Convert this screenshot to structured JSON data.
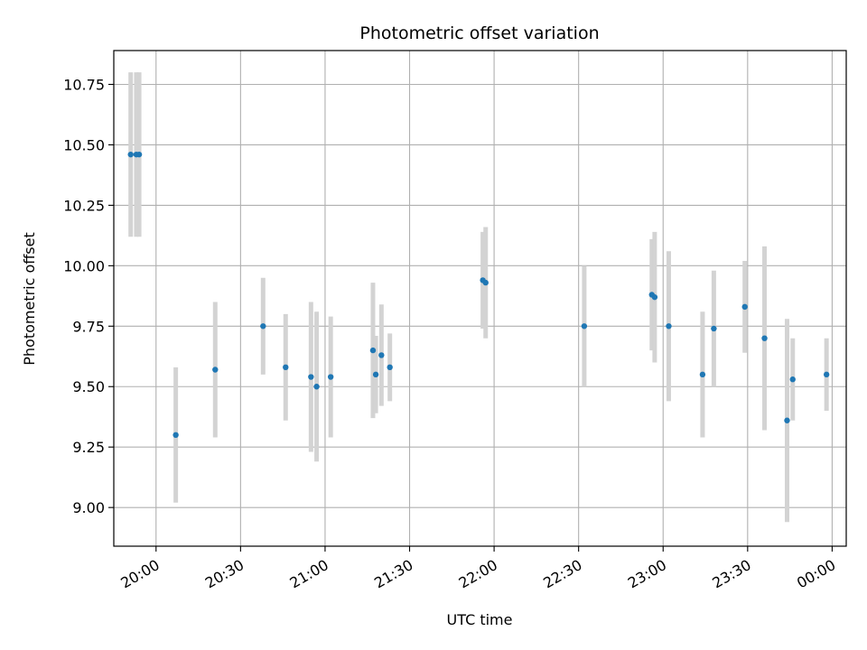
{
  "chart_data": {
    "type": "scatter",
    "title": "Photometric offset variation",
    "xlabel": "UTC time",
    "ylabel": "Photometric offset",
    "grid": true,
    "x_unit": "HH:MM",
    "xlim": [
      "19:45",
      "00:05"
    ],
    "ylim": [
      8.84,
      10.89
    ],
    "x_ticks": [
      "20:00",
      "20:30",
      "21:00",
      "21:30",
      "22:00",
      "22:30",
      "23:00",
      "23:30",
      "00:00"
    ],
    "y_ticks": [
      "9.00",
      "9.25",
      "9.50",
      "9.75",
      "10.00",
      "10.25",
      "10.50",
      "10.75"
    ],
    "marker_color": "#1f77b4",
    "errorbar_color": "#d3d3d3",
    "points": [
      {
        "x": "19:51",
        "y": 10.46,
        "err": 0.34
      },
      {
        "x": "19:53",
        "y": 10.46,
        "err": 0.34
      },
      {
        "x": "19:54",
        "y": 10.46,
        "err": 0.34
      },
      {
        "x": "20:07",
        "y": 9.3,
        "err": 0.28
      },
      {
        "x": "20:21",
        "y": 9.57,
        "err": 0.28
      },
      {
        "x": "20:38",
        "y": 9.75,
        "err": 0.2
      },
      {
        "x": "20:46",
        "y": 9.58,
        "err": 0.22
      },
      {
        "x": "20:55",
        "y": 9.54,
        "err": 0.31
      },
      {
        "x": "20:57",
        "y": 9.5,
        "err": 0.31
      },
      {
        "x": "21:02",
        "y": 9.54,
        "err": 0.25
      },
      {
        "x": "21:17",
        "y": 9.65,
        "err": 0.28
      },
      {
        "x": "21:18",
        "y": 9.55,
        "err": 0.16
      },
      {
        "x": "21:20",
        "y": 9.63,
        "err": 0.21
      },
      {
        "x": "21:23",
        "y": 9.58,
        "err": 0.14
      },
      {
        "x": "21:56",
        "y": 9.94,
        "err": 0.2
      },
      {
        "x": "21:57",
        "y": 9.93,
        "err": 0.23
      },
      {
        "x": "22:32",
        "y": 9.75,
        "err": 0.25
      },
      {
        "x": "22:56",
        "y": 9.88,
        "err": 0.23
      },
      {
        "x": "22:57",
        "y": 9.87,
        "err": 0.27
      },
      {
        "x": "23:02",
        "y": 9.75,
        "err": 0.31
      },
      {
        "x": "23:14",
        "y": 9.55,
        "err": 0.26
      },
      {
        "x": "23:18",
        "y": 9.74,
        "err": 0.24
      },
      {
        "x": "23:29",
        "y": 9.83,
        "err": 0.19
      },
      {
        "x": "23:36",
        "y": 9.7,
        "err": 0.38
      },
      {
        "x": "23:44",
        "y": 9.36,
        "err": 0.42
      },
      {
        "x": "23:46",
        "y": 9.53,
        "err": 0.17
      },
      {
        "x": "23:58",
        "y": 9.55,
        "err": 0.15
      }
    ]
  }
}
